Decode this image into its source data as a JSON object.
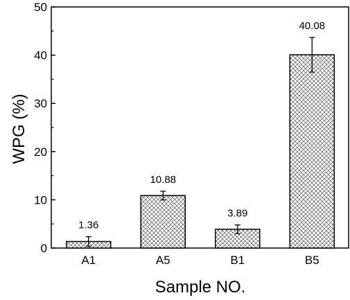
{
  "chart_data": {
    "type": "bar",
    "title": "",
    "xlabel": "Sample NO.",
    "ylabel": "WPG (%)",
    "categories": [
      "A1",
      "A5",
      "B1",
      "B5"
    ],
    "values": [
      1.36,
      10.88,
      3.89,
      40.08
    ],
    "data_labels": [
      "1.36",
      "10.88",
      "3.89",
      "40.08"
    ],
    "error_bars": [
      1.0,
      0.9,
      0.9,
      3.6
    ],
    "ylim": [
      0,
      50
    ],
    "yticks": [
      0,
      10,
      20,
      30,
      40,
      50
    ],
    "ytick_labels": [
      "0",
      "10",
      "20",
      "30",
      "40",
      "50"
    ],
    "bar_fill": "cross-hatch",
    "grid": false,
    "legend": "none"
  }
}
